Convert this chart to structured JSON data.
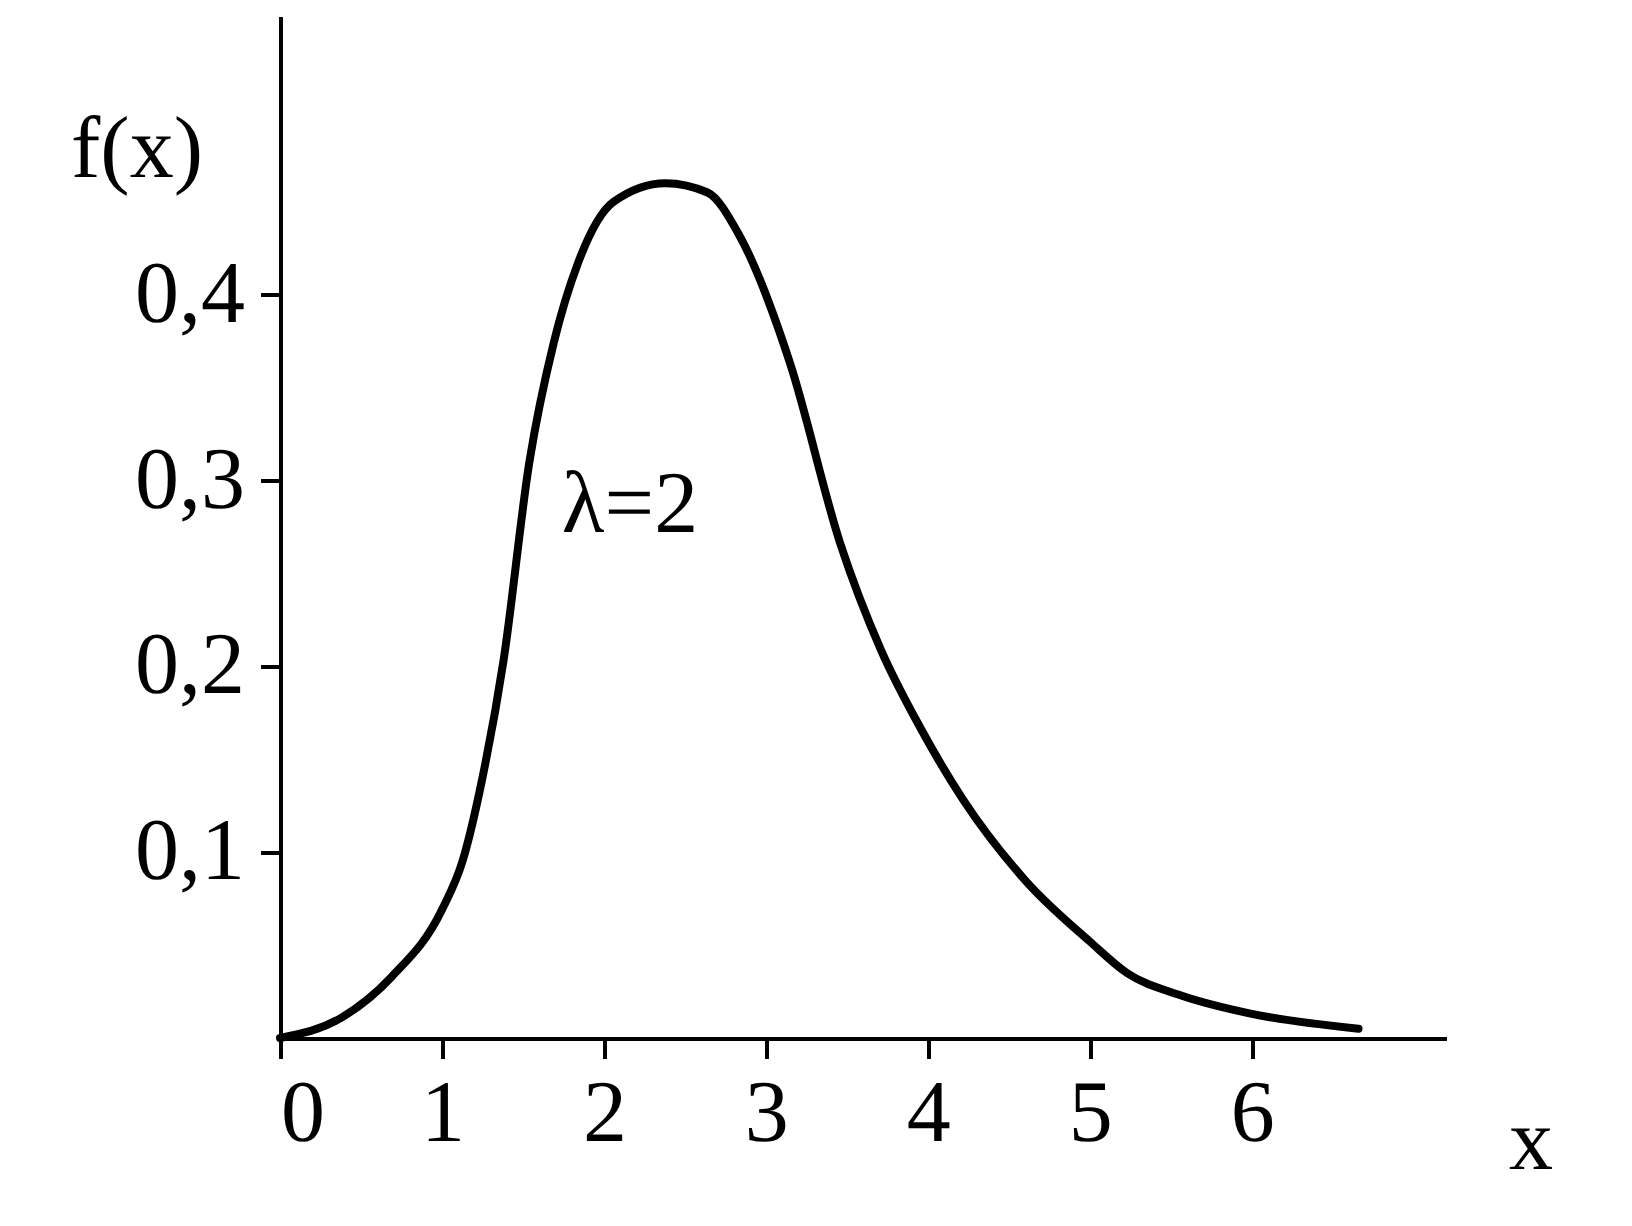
{
  "chart_data": {
    "type": "line",
    "xlabel": "x",
    "ylabel": "f(x)",
    "x": [
      0,
      0.38,
      0.69,
      1,
      1.13,
      1.25,
      1.38,
      1.54,
      1.69,
      1.84,
      2.06,
      2.38,
      2.64,
      2.83,
      3.15,
      3.46,
      3.71,
      3.96,
      4.22,
      4.6,
      5,
      5.23,
      5.56,
      6,
      6.66
    ],
    "series": [
      {
        "color": "#000000",
        "values": [
          0,
          0.011,
          0.033,
          0.069,
          0.096,
          0.14,
          0.203,
          0.31,
          0.374,
          0.417,
          0.45,
          0.46,
          0.455,
          0.433,
          0.363,
          0.266,
          0.209,
          0.166,
          0.128,
          0.085,
          0.052,
          0.035,
          0.023,
          0.013,
          0.005
        ]
      }
    ],
    "xlim": [
      0,
      7.2
    ],
    "ylim": [
      0,
      0.55
    ],
    "xticks": [
      0,
      1,
      2,
      3,
      4,
      5,
      6
    ],
    "yticks": [
      {
        "value": 0.1,
        "label": "0,1"
      },
      {
        "value": 0.2,
        "label": "0,2"
      },
      {
        "value": 0.3,
        "label": "0,3"
      },
      {
        "value": 0.4,
        "label": "0,4"
      }
    ],
    "annotations": [
      "λ=2"
    ],
    "grid": false,
    "marker": "none",
    "line_style": "solid"
  }
}
